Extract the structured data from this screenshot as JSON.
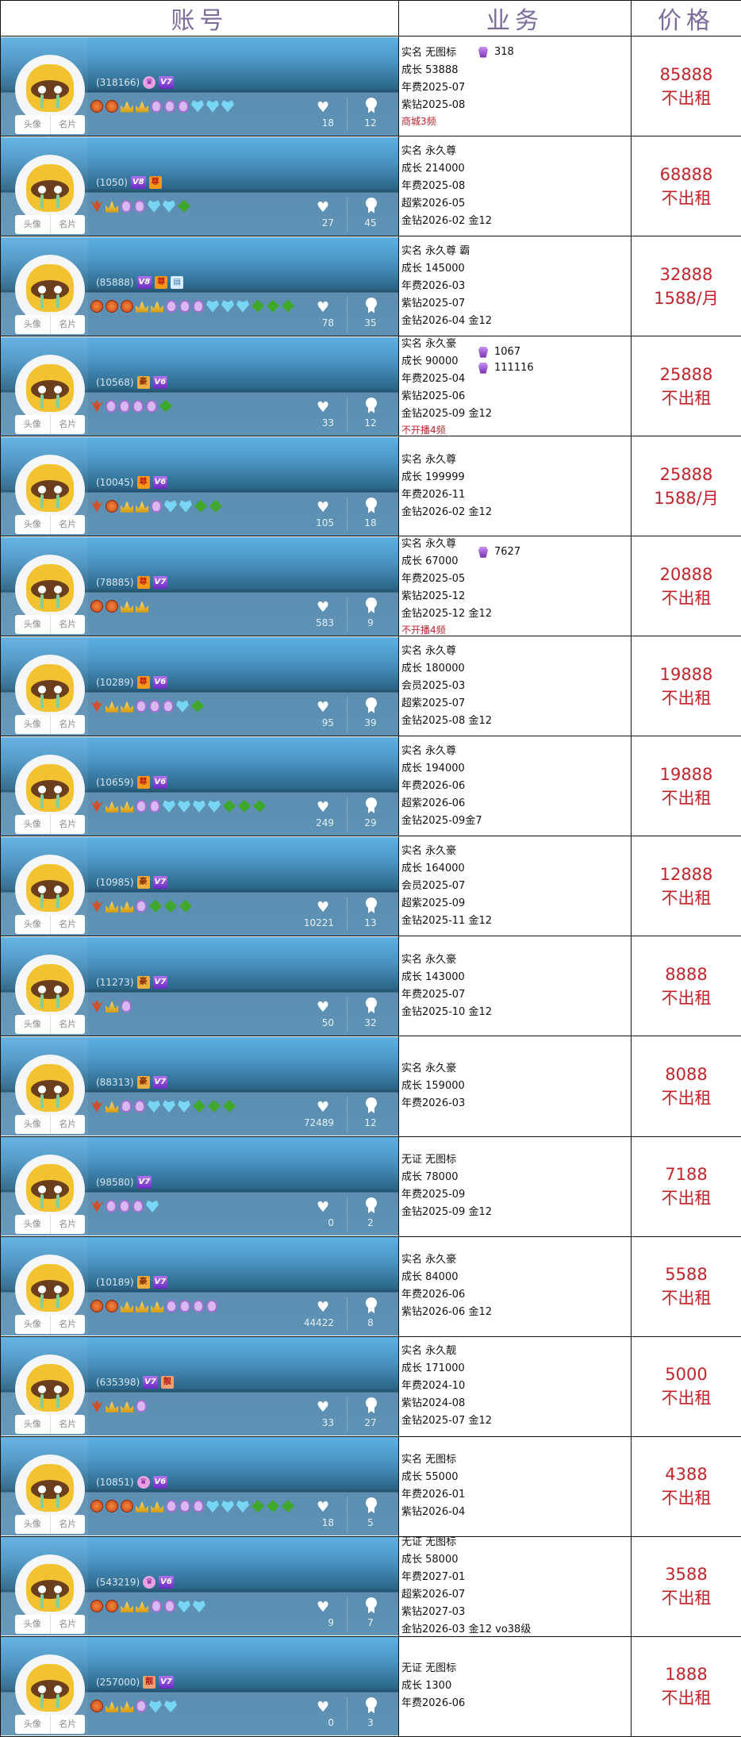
{
  "header": {
    "col_account": "账号",
    "col_business": "业务",
    "col_price": "价格"
  },
  "card_buttons": {
    "avatar": "头像",
    "profile": "名片"
  },
  "colors": {
    "price": "#c4232a",
    "header_text": "#7c6c9c",
    "card_blue": "#4a94c4"
  },
  "medal_legend": {
    "c": "orange-crown-medal",
    "g": "gold-crown-medal",
    "p": "purple-shield-medal",
    "d": "blue-diamond-medal",
    "l": "green-leaf-medal",
    "w": "red-wing-medal"
  },
  "rows": [
    {
      "id": "(318166)",
      "badges": [
        [
          "crown",
          "♛"
        ],
        [
          "V",
          "V7"
        ]
      ],
      "medals": "ccggpppddd",
      "likes": "18",
      "ranks": "12",
      "biz": [
        "实名 无图标",
        "成长 53888",
        "年费2025-07",
        "紫钻2025-08"
      ],
      "red": "商城3频",
      "extras": [
        "318"
      ],
      "price": "85888",
      "rent": "不出租"
    },
    {
      "id": "(1050)",
      "badges": [
        [
          "V",
          "V8"
        ],
        [
          "zun",
          "尊"
        ]
      ],
      "medals": "wgppddl",
      "likes": "27",
      "ranks": "45",
      "biz": [
        "实名 永久尊",
        "成长 214000",
        "年费2025-08",
        "超紫2026-05",
        "金钻2026-02 金12"
      ],
      "price": "68888",
      "rent": "不出租"
    },
    {
      "id": "(85888)",
      "badges": [
        [
          "V",
          "V8"
        ],
        [
          "zun",
          "尊"
        ],
        [
          "card",
          "▤"
        ]
      ],
      "medals": "cccggpppdddlll",
      "likes": "78",
      "ranks": "35",
      "biz": [
        "实名 永久尊 霸",
        "成长 145000",
        "年费2026-03",
        "紫钻2025-07",
        "金钻2026-04 金12"
      ],
      "price": "32888",
      "rent": "1588/月"
    },
    {
      "id": "(10568)",
      "badges": [
        [
          "hao",
          "豪"
        ],
        [
          "V",
          "V6"
        ]
      ],
      "medals": "wppppl",
      "likes": "33",
      "ranks": "12",
      "biz": [
        "实名 永久豪",
        "成长 90000",
        "年费2025-04",
        "紫钻2025-06",
        "金钻2025-09 金12"
      ],
      "red": "不开播4频",
      "extras": [
        "1067",
        "111116"
      ],
      "price": "25888",
      "rent": "不出租"
    },
    {
      "id": "(10045)",
      "badges": [
        [
          "zun",
          "尊"
        ],
        [
          "V",
          "V6"
        ]
      ],
      "medals": "wcggpddll",
      "likes": "105",
      "ranks": "18",
      "biz": [
        "实名 永久尊",
        "成长 199999",
        "年费2026-11",
        "金钻2026-02 金12"
      ],
      "price": "25888",
      "rent": "1588/月"
    },
    {
      "id": "(78885)",
      "badges": [
        [
          "zun",
          "尊"
        ],
        [
          "V",
          "V7"
        ]
      ],
      "medals": "ccgg",
      "likes": "583",
      "ranks": "9",
      "biz": [
        "实名 永久尊",
        "成长 67000",
        "年费2025-05",
        "紫钻2025-12",
        "金钻2025-12 金12"
      ],
      "red": "不开播4频",
      "extras": [
        "7627"
      ],
      "price": "20888",
      "rent": "不出租"
    },
    {
      "id": "(10289)",
      "badges": [
        [
          "zun",
          "尊"
        ],
        [
          "V",
          "V6"
        ]
      ],
      "medals": "wggpppdl",
      "likes": "95",
      "ranks": "39",
      "biz": [
        "实名 永久尊",
        "成长 180000",
        "会员2025-03",
        "超紫2025-07",
        "金钻2025-08 金12"
      ],
      "price": "19888",
      "rent": "不出租"
    },
    {
      "id": "(10659)",
      "badges": [
        [
          "zun",
          "尊"
        ],
        [
          "V",
          "V6"
        ]
      ],
      "medals": "wggppddddlll",
      "likes": "249",
      "ranks": "29",
      "biz": [
        "实名 永久尊",
        "成长 194000",
        "年费2026-06",
        "超紫2026-06",
        "金钻2025-09金7"
      ],
      "price": "19888",
      "rent": "不出租"
    },
    {
      "id": "(10985)",
      "badges": [
        [
          "hao",
          "豪"
        ],
        [
          "V",
          "V7"
        ]
      ],
      "medals": "wggplll",
      "likes": "10221",
      "ranks": "13",
      "biz": [
        "实名 永久豪",
        "成长 164000",
        "会员2025-07",
        "超紫2025-09",
        "金钻2025-11 金12"
      ],
      "price": "12888",
      "rent": "不出租"
    },
    {
      "id": "(11273)",
      "badges": [
        [
          "hao",
          "豪"
        ],
        [
          "V",
          "V7"
        ]
      ],
      "medals": "wgp",
      "likes": "50",
      "ranks": "32",
      "biz": [
        "实名 永久豪",
        "成长 143000",
        "年费2025-07",
        "金钻2025-10 金12"
      ],
      "price": "8888",
      "rent": "不出租"
    },
    {
      "id": "(88313)",
      "badges": [
        [
          "hao",
          "豪"
        ],
        [
          "V",
          "V7"
        ]
      ],
      "medals": "wgppdddlll",
      "likes": "72489",
      "ranks": "12",
      "biz": [
        "实名 永久豪",
        "成长 159000",
        "年费2026-03"
      ],
      "price": "8088",
      "rent": "不出租"
    },
    {
      "id": "(98580)",
      "badges": [
        [
          "V",
          "V7"
        ]
      ],
      "medals": "wpppd",
      "likes": "0",
      "ranks": "2",
      "biz": [
        "无证 无图标",
        "成长 78000",
        "年费2025-09",
        "金钻2025-09 金12"
      ],
      "price": "7188",
      "rent": "不出租"
    },
    {
      "id": "(10189)",
      "badges": [
        [
          "hao",
          "豪"
        ],
        [
          "V",
          "V7"
        ]
      ],
      "medals": "ccgggpppp",
      "likes": "44422",
      "ranks": "8",
      "biz": [
        "实名 永久豪",
        "成长 84000",
        "年费2026-06",
        "紫钻2026-06 金12"
      ],
      "price": "5588",
      "rent": "不出租"
    },
    {
      "id": "(635398)",
      "badges": [
        [
          "V",
          "V7"
        ],
        [
          "liang",
          "靓"
        ]
      ],
      "medals": "wggp",
      "likes": "33",
      "ranks": "27",
      "biz": [
        "实名 永久靓",
        "成长 171000",
        "年费2024-10",
        "紫钻2024-08",
        "金钻2025-07 金12"
      ],
      "price": "5000",
      "rent": "不出租"
    },
    {
      "id": "(10851)",
      "badges": [
        [
          "crown",
          "♛"
        ],
        [
          "V",
          "V6"
        ]
      ],
      "medals": "cccggpppdddlll",
      "likes": "18",
      "ranks": "5",
      "biz": [
        "实名 无图标",
        "成长 55000",
        "年费2026-01",
        "紫钻2026-04"
      ],
      "price": "4388",
      "rent": "不出租"
    },
    {
      "id": "(543219)",
      "badges": [
        [
          "crown",
          "♛"
        ],
        [
          "V",
          "V6"
        ]
      ],
      "medals": "ccggppdd",
      "likes": "9",
      "ranks": "7",
      "biz": [
        "无证 无图标",
        "成长 58000",
        "年费2027-01",
        "超紫2026-07",
        "紫钻2027-03",
        "金钻2026-03 金12 vo38级"
      ],
      "price": "3588",
      "rent": "不出租"
    },
    {
      "id": "(257000)",
      "badges": [
        [
          "liang",
          "靓"
        ],
        [
          "V",
          "V7"
        ]
      ],
      "medals": "cggpdd",
      "likes": "0",
      "ranks": "3",
      "biz": [
        "无证 无图标",
        "成长 1300",
        "年费2026-06"
      ],
      "price": "1888",
      "rent": "不出租"
    }
  ]
}
